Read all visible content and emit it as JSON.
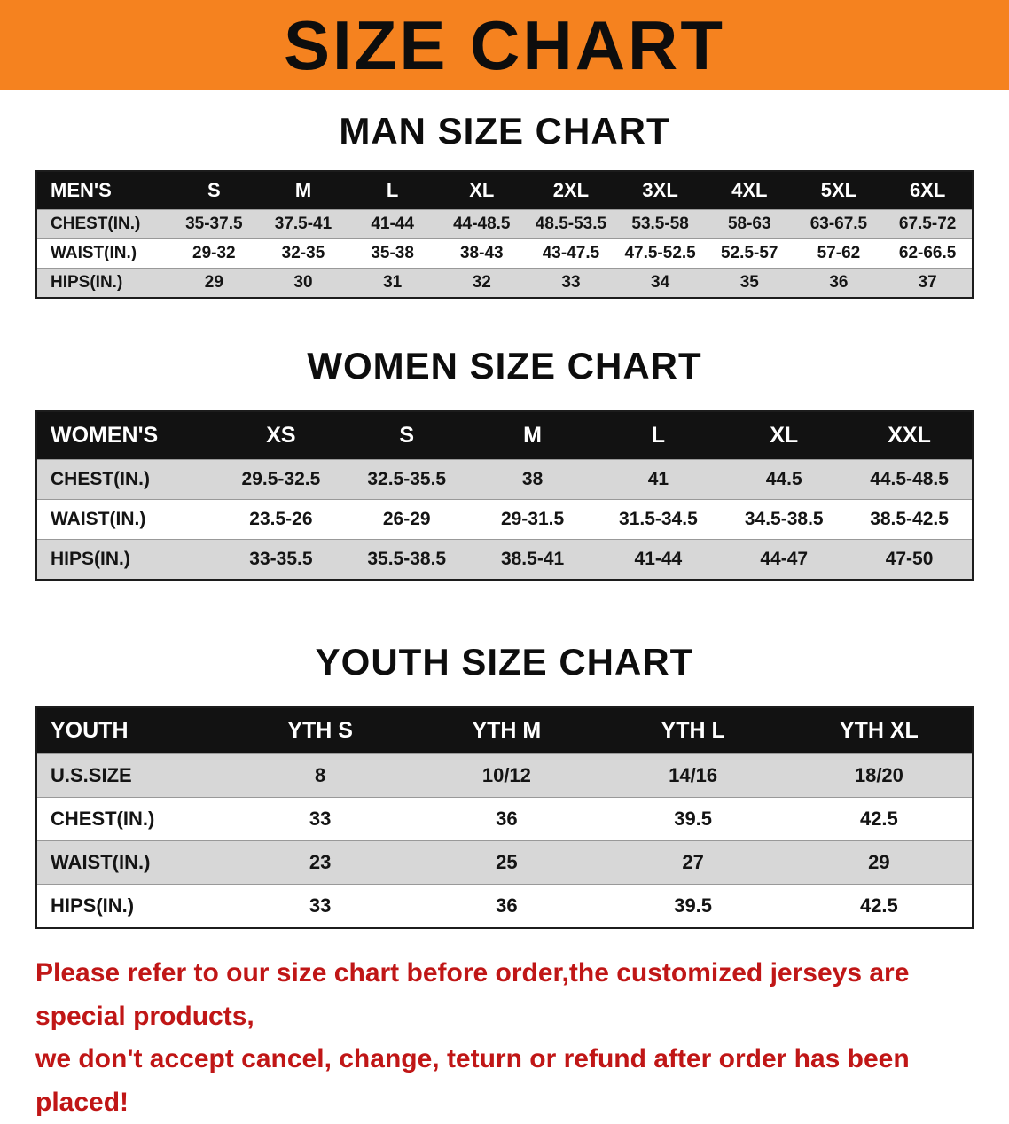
{
  "banner": {
    "title": "SIZE CHART"
  },
  "colors": {
    "banner_bg": "#f5821f",
    "table_header_bg": "#121212",
    "row_stripe": "#d7d7d7",
    "footer_text": "#c01616"
  },
  "sections": [
    {
      "heading": "MAN SIZE CHART",
      "table": {
        "header": [
          "MEN'S",
          "S",
          "M",
          "L",
          "XL",
          "2XL",
          "3XL",
          "4XL",
          "5XL",
          "6XL"
        ],
        "rows": [
          [
            "CHEST(IN.)",
            "35-37.5",
            "37.5-41",
            "41-44",
            "44-48.5",
            "48.5-53.5",
            "53.5-58",
            "58-63",
            "63-67.5",
            "67.5-72"
          ],
          [
            "WAIST(IN.)",
            "29-32",
            "32-35",
            "35-38",
            "38-43",
            "43-47.5",
            "47.5-52.5",
            "52.5-57",
            "57-62",
            "62-66.5"
          ],
          [
            "HIPS(IN.)",
            "29",
            "30",
            "31",
            "32",
            "33",
            "34",
            "35",
            "36",
            "37"
          ]
        ]
      }
    },
    {
      "heading": "WOMEN SIZE CHART",
      "table": {
        "header": [
          "WOMEN'S",
          "XS",
          "S",
          "M",
          "L",
          "XL",
          "XXL"
        ],
        "rows": [
          [
            "CHEST(IN.)",
            "29.5-32.5",
            "32.5-35.5",
            "38",
            "41",
            "44.5",
            "44.5-48.5"
          ],
          [
            "WAIST(IN.)",
            "23.5-26",
            "26-29",
            "29-31.5",
            "31.5-34.5",
            "34.5-38.5",
            "38.5-42.5"
          ],
          [
            "HIPS(IN.)",
            "33-35.5",
            "35.5-38.5",
            "38.5-41",
            "41-44",
            "44-47",
            "47-50"
          ]
        ]
      }
    },
    {
      "heading": "YOUTH SIZE CHART",
      "table": {
        "header": [
          "YOUTH",
          "YTH S",
          "YTH M",
          "YTH L",
          "YTH XL"
        ],
        "rows": [
          [
            "U.S.SIZE",
            "8",
            "10/12",
            "14/16",
            "18/20"
          ],
          [
            "CHEST(IN.)",
            "33",
            "36",
            "39.5",
            "42.5"
          ],
          [
            "WAIST(IN.)",
            "23",
            "25",
            "27",
            "29"
          ],
          [
            "HIPS(IN.)",
            "33",
            "36",
            "39.5",
            "42.5"
          ]
        ]
      }
    }
  ],
  "footer": {
    "line1": "Please refer to our size chart before order,the customized jerseys are special products,",
    "line2": "we don't accept cancel, change, teturn or refund after order has been placed!"
  }
}
